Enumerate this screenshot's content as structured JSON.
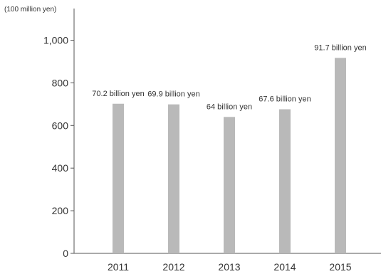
{
  "chart_data": {
    "type": "bar",
    "unit_label": "(100 million yen)",
    "categories": [
      "2011",
      "2012",
      "2013",
      "2014",
      "2015"
    ],
    "values": [
      702,
      699,
      640,
      676,
      917
    ],
    "data_labels": [
      "70.2 billion yen",
      "69.9 billion yen",
      "64 billion yen",
      "67.6 billion yen",
      "91.7 billion yen"
    ],
    "y_ticks": [
      0,
      200,
      400,
      600,
      800,
      1000
    ],
    "y_tick_labels": [
      "0",
      "200",
      "400",
      "600",
      "800",
      "1,000"
    ],
    "ylim": [
      0,
      1100
    ],
    "bar_color": "#b9b9b9",
    "axis_color": "#555555",
    "grid": false
  }
}
